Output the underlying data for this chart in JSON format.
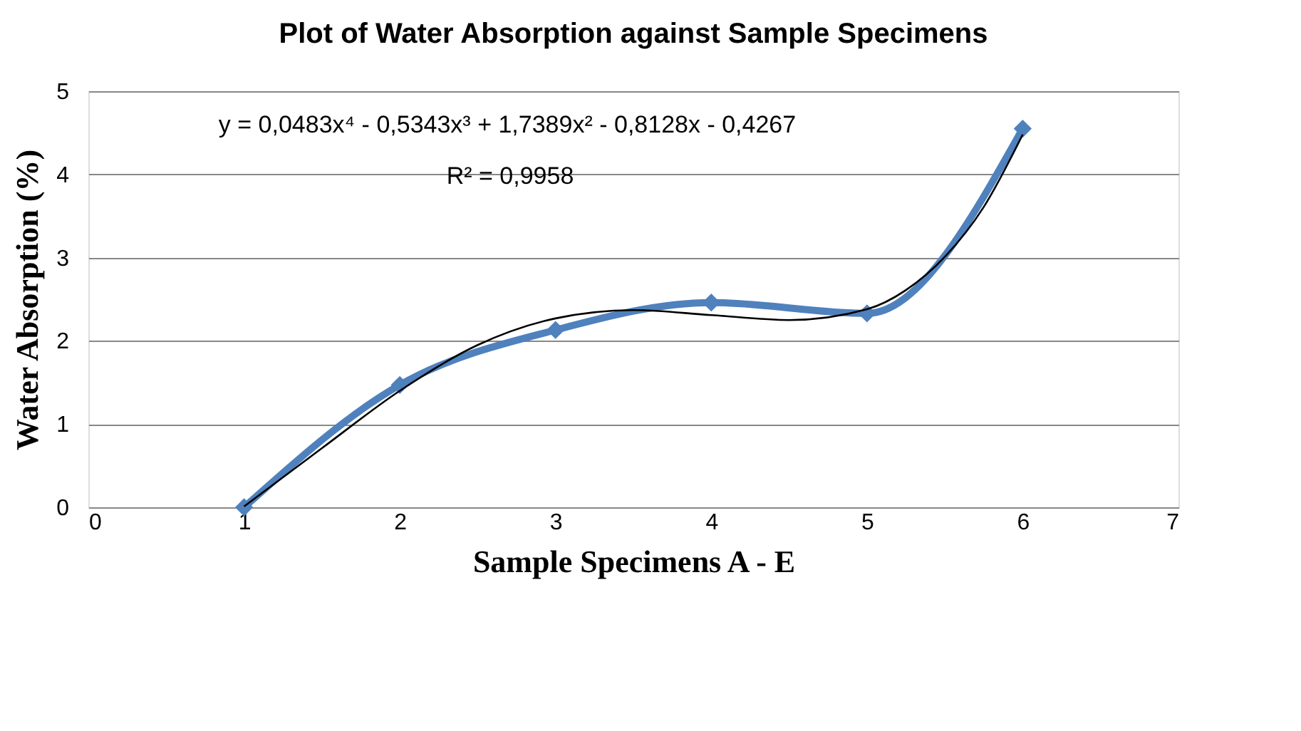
{
  "chart_data": {
    "type": "line",
    "title": "Plot of Water Absorption against Sample Specimens",
    "xlabel": "Sample Specimens A - E",
    "ylabel": "Water Absorption (%)",
    "x": [
      1,
      2,
      3,
      4,
      5,
      6
    ],
    "series": [
      {
        "color": "#4f81bd",
        "values": [
          0,
          1.47,
          2.13,
          2.46,
          2.33,
          4.55
        ],
        "marker": "diamond"
      },
      {
        "type": "line",
        "color": "#000000",
        "marker": "none",
        "x": [
          1,
          1.5,
          2,
          2.5,
          3,
          3.5,
          4,
          4.5,
          5,
          5.25,
          5.5,
          5.75,
          6
        ],
        "values": [
          0.01,
          0.71,
          1.4,
          1.95,
          2.27,
          2.37,
          2.31,
          2.25,
          2.38,
          2.61,
          3.01,
          3.61,
          4.48
        ]
      }
    ],
    "xlim": [
      0,
      7
    ],
    "xticks": [
      0,
      1,
      2,
      3,
      4,
      5,
      6,
      7
    ],
    "ylim": [
      0,
      5
    ],
    "yticks": [
      0,
      1,
      2,
      3,
      4,
      5
    ],
    "grid": "y",
    "annotations": [
      "y = 0,0483x⁴ - 0,5343x³ + 1,7389x² - 0,8128x - 0,4267",
      "R² = 0,9958"
    ]
  }
}
